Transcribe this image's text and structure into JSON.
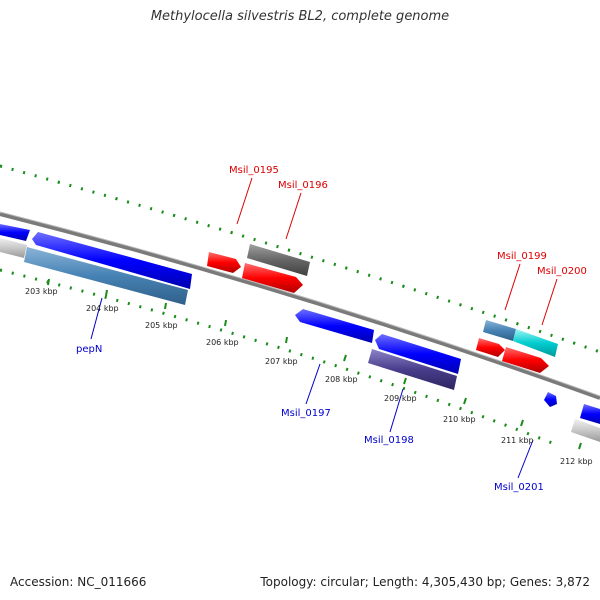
{
  "title": "Methylocella silvestris BL2, complete genome",
  "accession": "Accession: NC_011666",
  "topology": "Topology: circular; Length: 4,305,430 bp; Genes: 3,872",
  "colors": {
    "forward_strand": "#0000ff",
    "reverse_strand": "#ff0000",
    "backbone": "#808080",
    "tick": "#1a8c1a",
    "label_forward": "#0000cc",
    "label_reverse": "#dd0000"
  },
  "scale_labels": [
    "203 kbp",
    "204 kbp",
    "205 kbp",
    "206 kbp",
    "207 kbp",
    "208 kbp",
    "209 kbp",
    "210 kbp",
    "211 kbp",
    "212 kbp"
  ],
  "gene_labels": {
    "msil_0195": "Msil_0195",
    "msil_0196": "Msil_0196",
    "msil_0199": "Msil_0199",
    "msil_0200": "Msil_0200",
    "pepn": "pepN",
    "msil_0197": "Msil_0197",
    "msil_0198": "Msil_0198",
    "msil_0201": "Msil_0201"
  }
}
